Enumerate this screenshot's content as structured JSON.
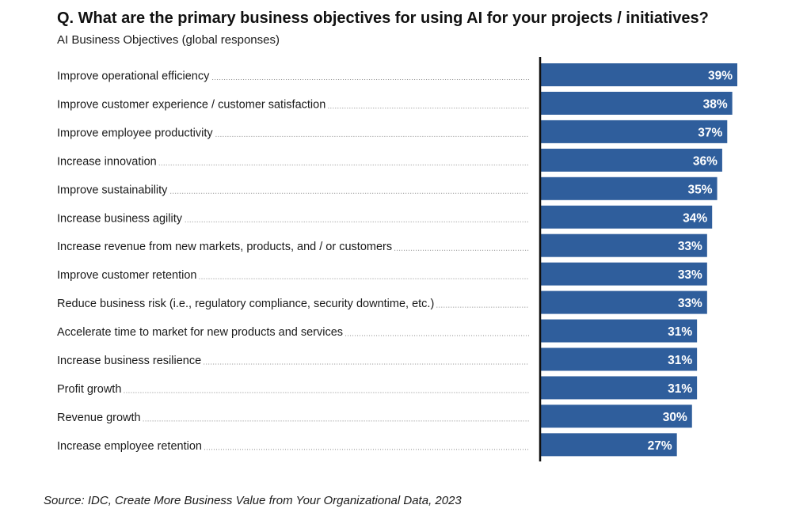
{
  "title": "Q. What are the primary business objectives for using AI for your projects / initiatives?",
  "subtitle": "AI Business Objectives (global responses)",
  "source": "Source: IDC, Create More Business Value from Your Organizational Data, 2023",
  "colors": {
    "bar": "#2f5e9c",
    "axis": "#111111",
    "leader": "#8a8a8a",
    "value_text": "#ffffff"
  },
  "chart_data": {
    "type": "bar",
    "orientation": "horizontal",
    "title": "Q. What are the primary business objectives for using AI for your projects / initiatives?",
    "subtitle": "AI Business Objectives (global responses)",
    "xlabel": "",
    "ylabel": "",
    "unit": "%",
    "xlim": [
      0,
      39
    ],
    "grid": false,
    "categories": [
      "Improve operational efficiency",
      "Improve customer experience / customer satisfaction",
      "Improve employee productivity",
      "Increase innovation",
      "Improve sustainability",
      "Increase business agility",
      "Increase revenue from new markets, products, and / or customers",
      "Improve customer retention",
      "Reduce business risk (i.e., regulatory compliance, security downtime, etc.)",
      "Accelerate time to market for new products and services",
      "Increase business resilience",
      "Profit growth",
      "Revenue growth",
      "Increase employee retention"
    ],
    "values": [
      39,
      38,
      37,
      36,
      35,
      34,
      33,
      33,
      33,
      31,
      31,
      31,
      30,
      27
    ],
    "value_labels": [
      "39%",
      "38%",
      "37%",
      "36%",
      "35%",
      "34%",
      "33%",
      "33%",
      "33%",
      "31%",
      "31%",
      "31%",
      "30%",
      "27%"
    ]
  }
}
